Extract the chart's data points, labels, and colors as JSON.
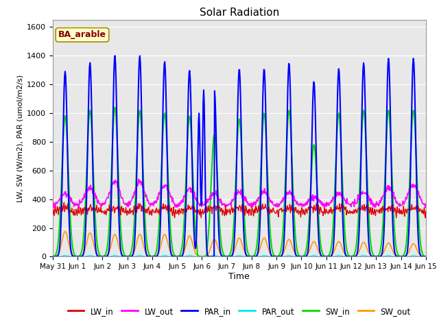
{
  "title": "Solar Radiation",
  "xlabel": "Time",
  "ylabel": "LW, SW (W/m2), PAR (umol/m2/s)",
  "annotation": "BA_arable",
  "ylim": [
    0,
    1650
  ],
  "yticks": [
    0,
    200,
    400,
    600,
    800,
    1000,
    1200,
    1400,
    1600
  ],
  "xtick_labels": [
    "May 31",
    "Jun 1",
    "Jun 2",
    "Jun 3",
    "Jun 4",
    "Jun 5",
    "Jun 6",
    "Jun 7",
    "Jun 8",
    "Jun 9",
    "Jun 10",
    "Jun 11",
    "Jun 12",
    "Jun 13",
    "Jun 14",
    "Jun 15"
  ],
  "n_days": 15,
  "line_colors": {
    "LW_in": "#dd0000",
    "LW_out": "#ff00ff",
    "PAR_in": "#0000ff",
    "PAR_out": "#00eeee",
    "SW_in": "#00dd00",
    "SW_out": "#ff9900"
  },
  "line_widths": {
    "LW_in": 1.0,
    "LW_out": 1.2,
    "PAR_in": 1.5,
    "PAR_out": 1.0,
    "SW_in": 1.5,
    "SW_out": 1.2
  },
  "bg_color": "#e8e8e8",
  "annotation_bg": "#ffffcc",
  "annotation_border": "#aa8800",
  "annotation_text_color": "#880000",
  "fig_width": 6.4,
  "fig_height": 4.8,
  "dpi": 100
}
